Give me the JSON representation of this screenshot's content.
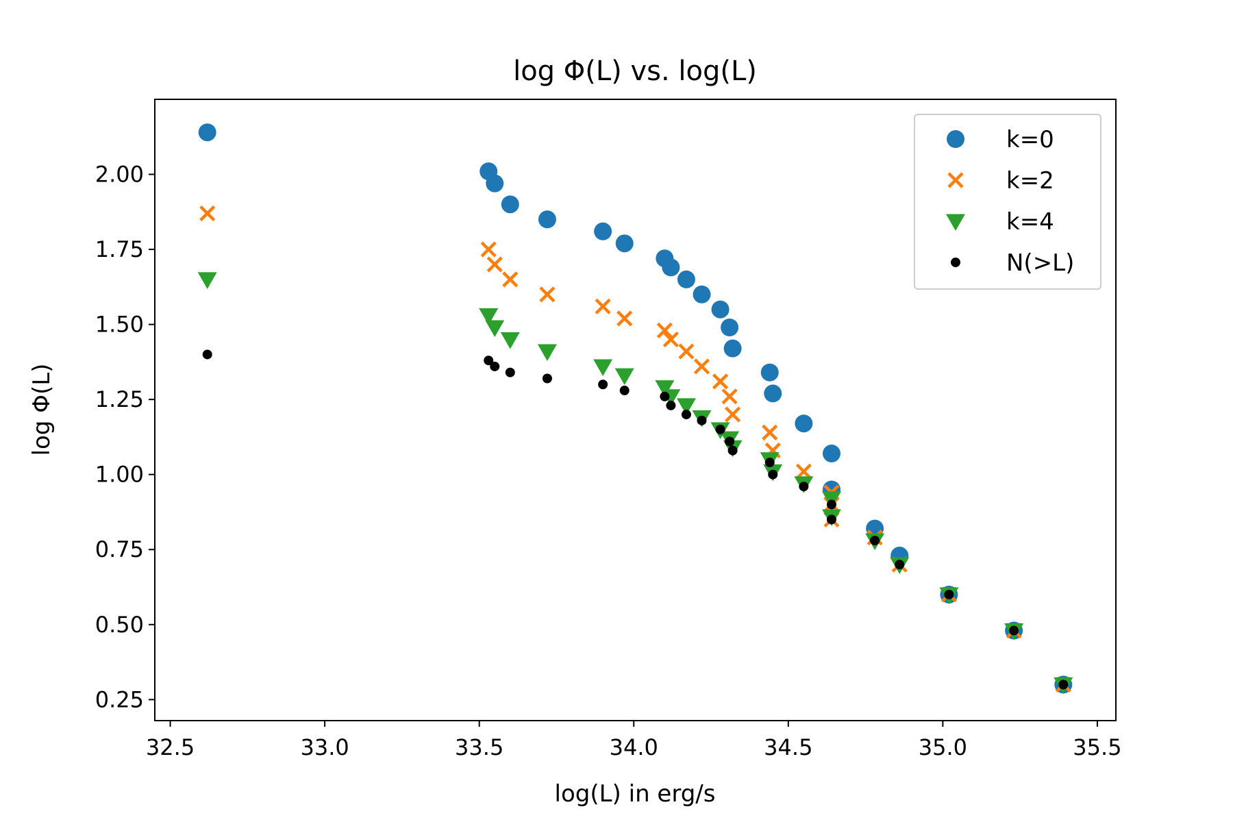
{
  "chart_data": {
    "type": "scatter",
    "title": "log Φ(L) vs. log(L)",
    "xlabel": "log(L) in erg/s",
    "ylabel": "log Φ(L)",
    "xlim": [
      32.45,
      35.56
    ],
    "ylim": [
      0.18,
      2.25
    ],
    "x_ticks": [
      32.5,
      33.0,
      33.5,
      34.0,
      34.5,
      35.0,
      35.5
    ],
    "x_tick_labels": [
      "32.5",
      "33.0",
      "33.5",
      "34.0",
      "34.5",
      "35.0",
      "35.5"
    ],
    "y_ticks": [
      0.25,
      0.5,
      0.75,
      1.0,
      1.25,
      1.5,
      1.75,
      2.0
    ],
    "y_tick_labels": [
      "0.25",
      "0.50",
      "0.75",
      "1.00",
      "1.25",
      "1.50",
      "1.75",
      "2.00"
    ],
    "grid": false,
    "legend_position": "top-right",
    "x": [
      32.62,
      33.53,
      33.55,
      33.6,
      33.72,
      33.9,
      33.97,
      34.1,
      34.12,
      34.17,
      34.22,
      34.28,
      34.31,
      34.32,
      34.44,
      34.45,
      34.55,
      34.64,
      34.64,
      34.64,
      34.64,
      34.78,
      34.86,
      35.02,
      35.23,
      35.39
    ],
    "series": [
      {
        "name": "k=0",
        "marker": "circle",
        "color": "#1f77b4",
        "values": [
          2.14,
          2.01,
          1.97,
          1.9,
          1.85,
          1.81,
          1.77,
          1.72,
          1.69,
          1.65,
          1.6,
          1.55,
          1.49,
          1.42,
          1.34,
          1.27,
          1.17,
          1.07,
          0.95,
          null,
          null,
          0.82,
          0.73,
          0.6,
          0.48,
          0.3
        ]
      },
      {
        "name": "k=2",
        "marker": "x",
        "color": "#ff7f0e",
        "values": [
          1.87,
          1.75,
          1.7,
          1.65,
          1.6,
          1.56,
          1.52,
          1.48,
          1.45,
          1.41,
          1.36,
          1.31,
          1.26,
          1.2,
          1.14,
          1.08,
          1.01,
          0.94,
          0.9,
          0.85,
          null,
          0.79,
          0.7,
          0.6,
          0.48,
          0.3
        ]
      },
      {
        "name": "k=4",
        "marker": "triangle-down",
        "color": "#2ca02c",
        "values": [
          1.65,
          1.53,
          1.49,
          1.45,
          1.41,
          1.36,
          1.33,
          1.29,
          1.26,
          1.23,
          1.19,
          1.15,
          1.12,
          1.09,
          1.05,
          1.01,
          0.97,
          0.92,
          0.86,
          null,
          null,
          0.78,
          0.7,
          0.6,
          0.48,
          0.3
        ]
      },
      {
        "name": "N(>L)",
        "marker": "dot",
        "color": "#000000",
        "values": [
          1.4,
          1.38,
          1.36,
          1.34,
          1.32,
          1.3,
          1.28,
          1.26,
          1.23,
          1.2,
          1.18,
          1.15,
          1.11,
          1.08,
          1.04,
          1.0,
          0.96,
          0.9,
          0.85,
          null,
          null,
          0.78,
          0.7,
          0.6,
          0.48,
          0.3
        ]
      }
    ]
  }
}
